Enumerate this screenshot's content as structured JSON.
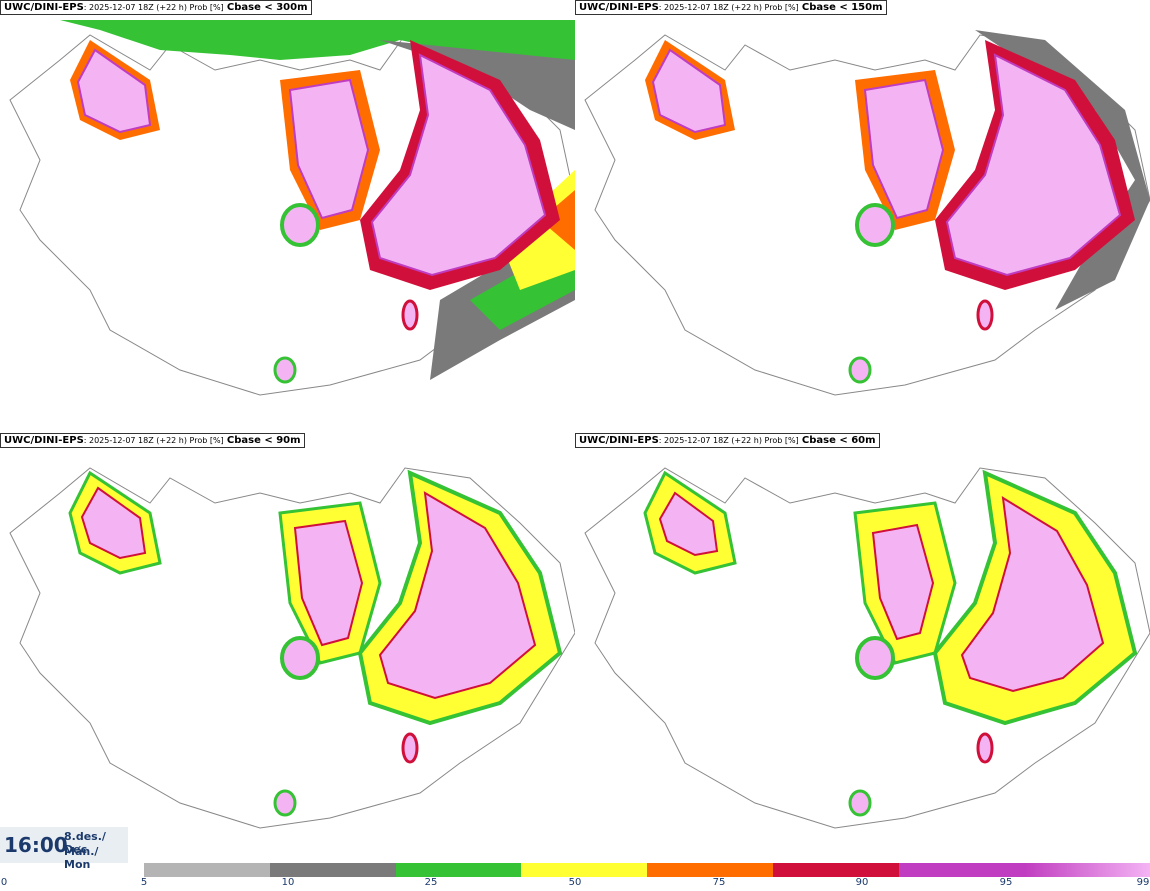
{
  "panels": [
    {
      "model": "UWC/DINI-EPS",
      "meta": ": 2025-12-07 18Z (+22 h) Prob [%]",
      "threshold": "Cbase < 300m"
    },
    {
      "model": "UWC/DINI-EPS",
      "meta": ": 2025-12-07 18Z (+22 h) Prob [%]",
      "threshold": "Cbase < 150m"
    },
    {
      "model": "UWC/DINI-EPS",
      "meta": ": 2025-12-07 18Z (+22 h) Prob [%]",
      "threshold": "Cbase < 90m"
    },
    {
      "model": "UWC/DINI-EPS",
      "meta": ": 2025-12-07 18Z (+22 h) Prob [%]",
      "threshold": "Cbase < 60m"
    }
  ],
  "valid_time": {
    "time": "16:00",
    "date_line": "8.des./ Dec",
    "day_line": "Mán./ Mon"
  },
  "colorbar": {
    "ticks": [
      "0",
      "5",
      "10",
      "25",
      "50",
      "75",
      "90",
      "95",
      "99"
    ],
    "colors": [
      "#b4b4b4",
      "#7a7a7a",
      "#35c235",
      "#ffff33",
      "#ff6d00",
      "#d0103a",
      "#c03cc0",
      "#f4b4f4"
    ]
  }
}
